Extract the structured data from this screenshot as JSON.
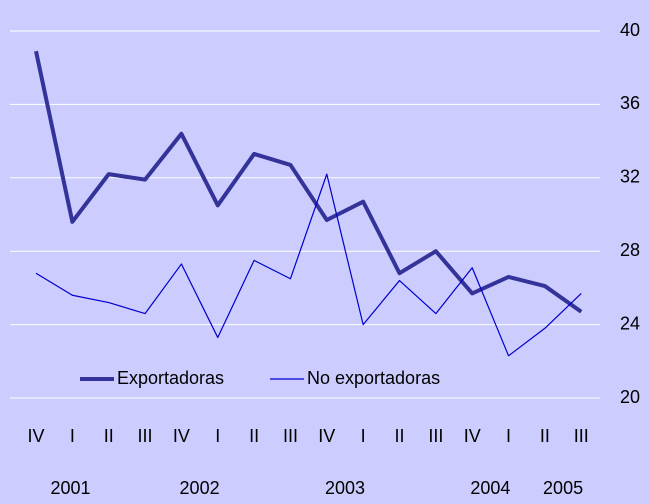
{
  "chart_data": {
    "type": "line",
    "categories": [
      "IV",
      "I",
      "II",
      "III",
      "IV",
      "I",
      "II",
      "III",
      "IV",
      "I",
      "II",
      "III",
      "IV",
      "I",
      "II",
      "III"
    ],
    "years": [
      "2001",
      "2002",
      "2003",
      "2004",
      "2005"
    ],
    "series": [
      {
        "name": "Exportadoras",
        "color": "#333399",
        "values": [
          38.9,
          29.6,
          32.2,
          31.9,
          34.4,
          30.5,
          33.3,
          32.7,
          29.7,
          30.7,
          26.8,
          28.0,
          25.7,
          26.6,
          26.1,
          24.7
        ]
      },
      {
        "name": "No exportadoras",
        "color": "#0000cc",
        "values": [
          26.8,
          25.6,
          25.2,
          24.6,
          27.3,
          23.3,
          27.5,
          26.5,
          32.2,
          24.0,
          26.4,
          24.6,
          27.1,
          22.3,
          23.8,
          25.7
        ]
      }
    ],
    "ylim": [
      20,
      40
    ],
    "yticks": [
      20,
      24,
      28,
      32,
      36,
      40
    ],
    "grid": true
  }
}
